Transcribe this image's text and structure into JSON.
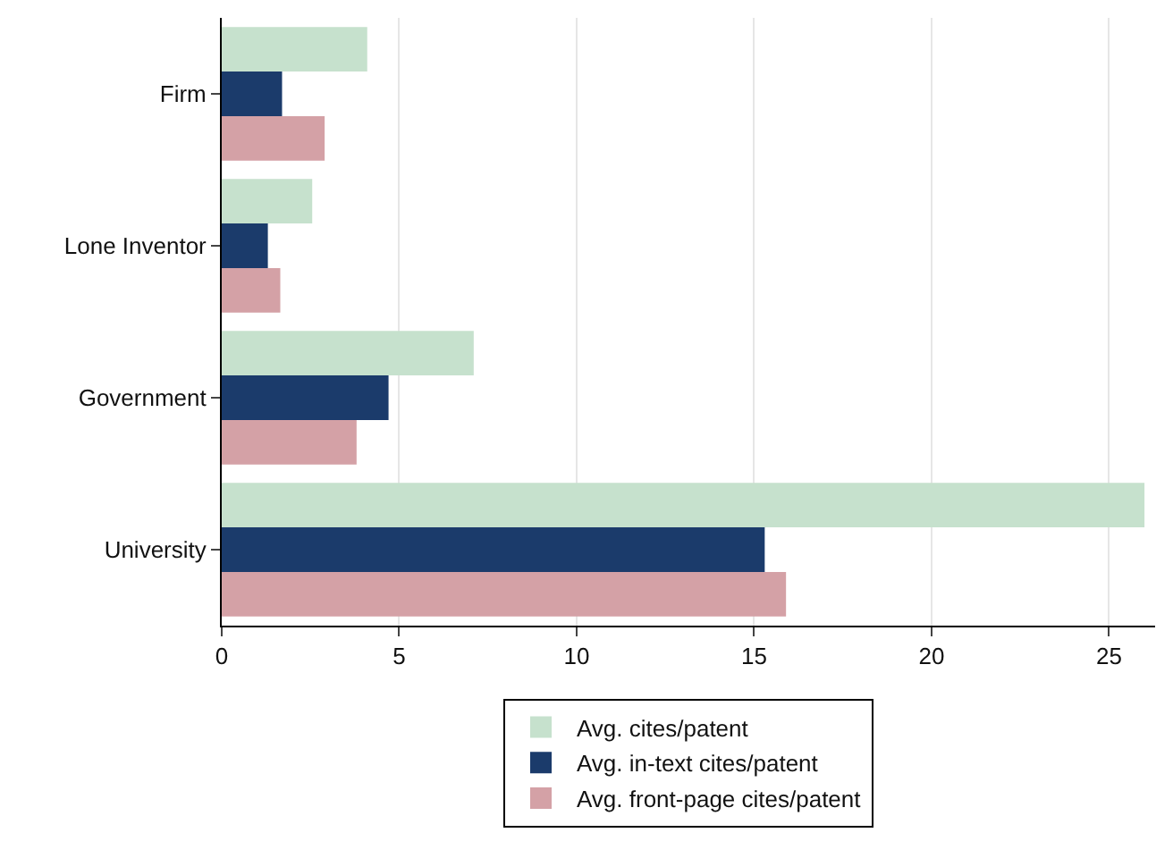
{
  "chart_data": {
    "type": "bar",
    "orientation": "horizontal",
    "categories": [
      "Firm",
      "Lone Inventor",
      "Government",
      "University"
    ],
    "series": [
      {
        "name": "Avg. cites/patent",
        "color": "#c6e1cd",
        "values": [
          4.1,
          2.55,
          7.1,
          26.0
        ]
      },
      {
        "name": "Avg. in-text cites/patent",
        "color": "#1b3b6b",
        "values": [
          1.7,
          1.3,
          4.7,
          15.3
        ]
      },
      {
        "name": "Avg. front-page cites/patent",
        "color": "#d4a1a6",
        "values": [
          2.9,
          1.65,
          3.8,
          15.9
        ]
      }
    ],
    "xlim": [
      0,
      26.3
    ],
    "xticks": [
      0,
      5,
      10,
      15,
      20,
      25
    ],
    "grid": "x",
    "legend": "bottom"
  }
}
